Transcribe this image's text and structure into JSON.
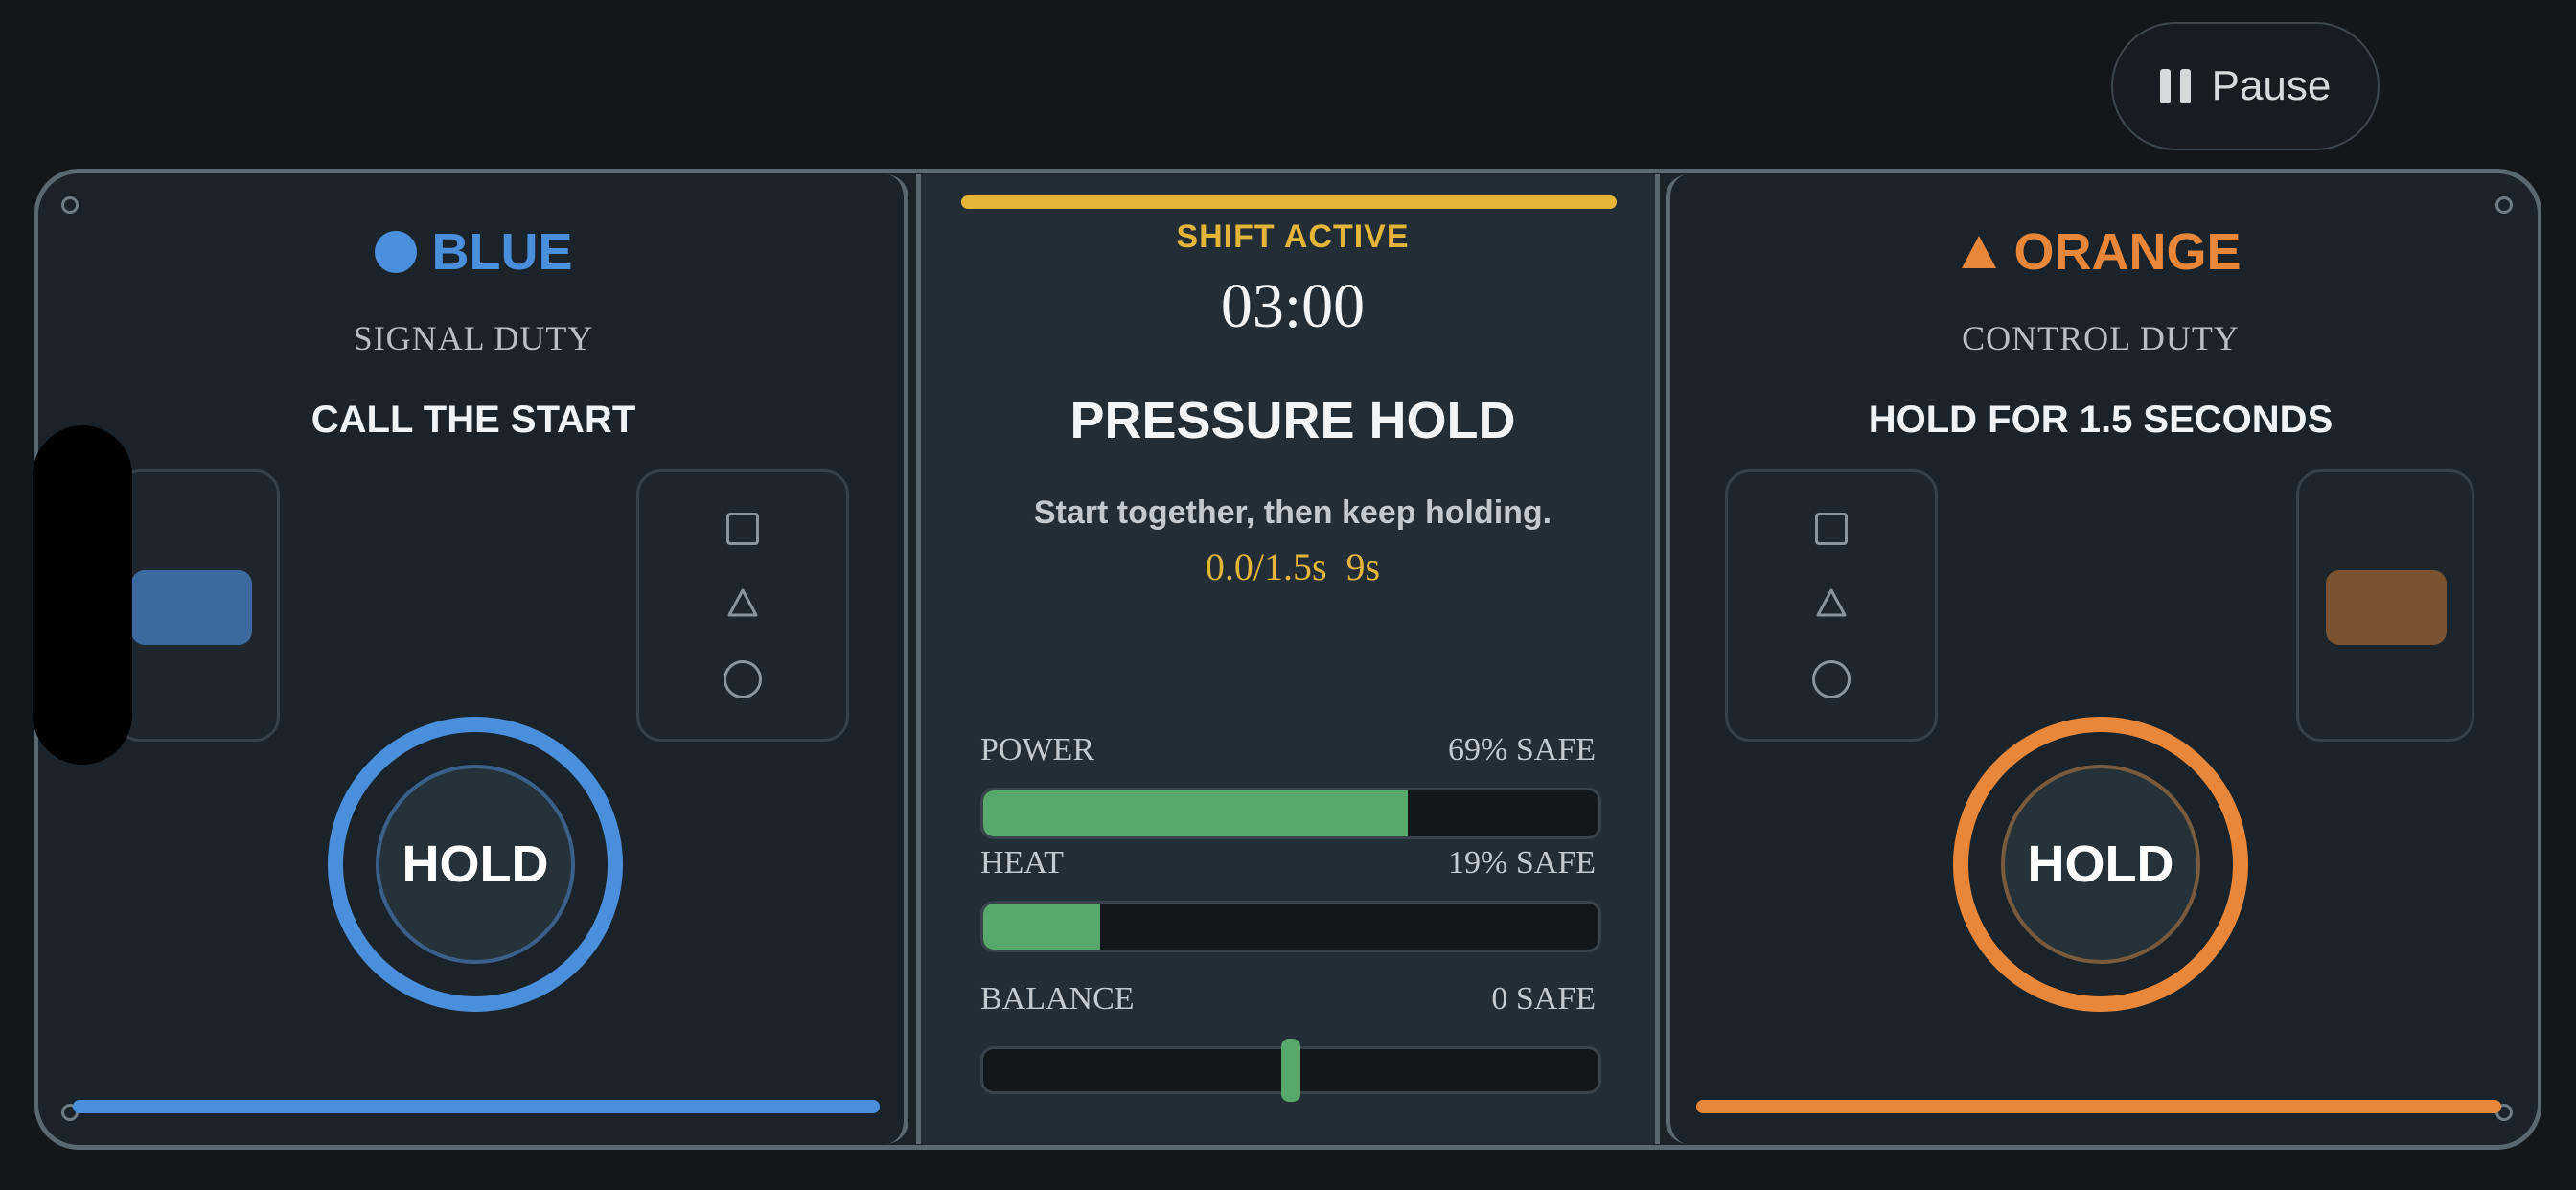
{
  "pause": {
    "label": "Pause"
  },
  "left": {
    "team": "BLUE",
    "team_color": "#4a8fdb",
    "duty": "SIGNAL DUTY",
    "task": "CALL THE START",
    "button": "HOLD",
    "shape_icon": "circle-icon"
  },
  "right": {
    "team": "ORANGE",
    "team_color": "#e8873a",
    "duty": "CONTROL DUTY",
    "task": "HOLD FOR 1.5 SECONDS",
    "button": "HOLD",
    "shape_icon": "triangle-icon"
  },
  "center": {
    "status": "SHIFT ACTIVE",
    "timer": "03:00",
    "mode": "PRESSURE HOLD",
    "instruction": "Start together, then keep holding.",
    "progress_text": "0.0/1.5s  9s",
    "accent": "#e5b53a",
    "meters": [
      {
        "label": "POWER",
        "value_text": "69% SAFE",
        "fraction": 0.69
      },
      {
        "label": "HEAT",
        "value_text": "19% SAFE",
        "fraction": 0.19
      },
      {
        "label": "BALANCE",
        "value_text": "0 SAFE",
        "balance": 0
      }
    ]
  }
}
